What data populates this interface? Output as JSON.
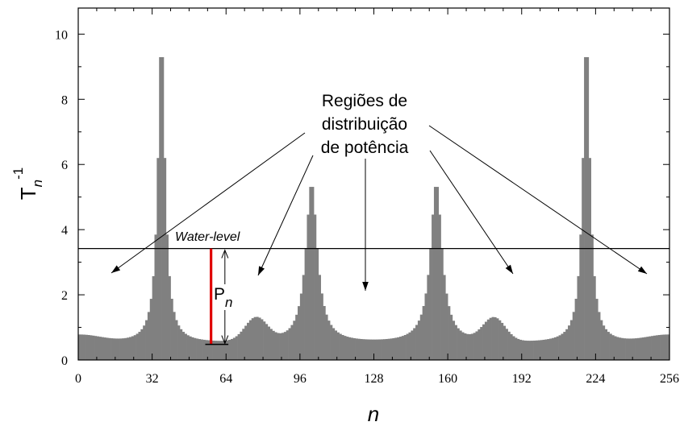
{
  "chart_data": {
    "type": "bar",
    "title": "",
    "xlabel": "n",
    "ylabel_main": "T",
    "ylabel_sub": "n",
    "ylabel_sup": "-1",
    "xlim": [
      0,
      256
    ],
    "ylim": [
      0,
      10.8
    ],
    "xticks": [
      0,
      32,
      64,
      96,
      128,
      160,
      192,
      224,
      256
    ],
    "yticks": [
      0,
      2,
      4,
      6,
      8,
      10
    ],
    "bar_color": "#808080",
    "water_level": 3.42,
    "water_level_label": "Water-level",
    "red_bar_color": "#e00000",
    "red_bar_x": 57.5,
    "red_bar_bottom": 0.48,
    "pn_label_main": "P",
    "pn_label_sub": "n",
    "annotation_lines": [
      "Regiões de",
      "distribuição",
      "de potência"
    ],
    "peaks": [
      {
        "x": 36,
        "height": 9.92
      },
      {
        "x": 101,
        "height": 5.42
      },
      {
        "x": 155,
        "height": 5.42
      },
      {
        "x": 220,
        "height": 9.92
      }
    ],
    "minor_bumps": [
      {
        "x": 77,
        "height": 1.45
      },
      {
        "x": 180,
        "height": 1.45
      }
    ],
    "valley_minimums": [
      {
        "x": 57,
        "value": 0.48
      },
      {
        "x": 128,
        "value": 0.55
      },
      {
        "x": 199,
        "value": 0.48
      }
    ],
    "edge_values": {
      "x0": 0.75,
      "x256": 0.75
    }
  }
}
